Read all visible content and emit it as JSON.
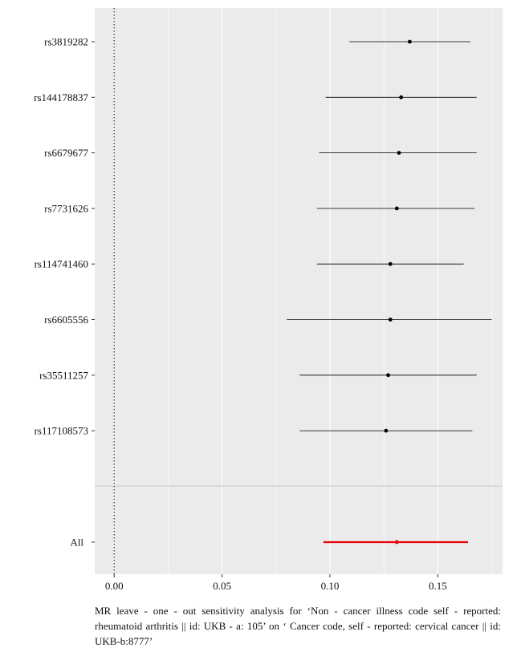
{
  "chart_data": {
    "type": "forest",
    "title": "",
    "xlabel": "",
    "ylabel": "",
    "xlim": [
      -0.009,
      0.18
    ],
    "xticks": [
      "0.00",
      "0.05",
      "0.10",
      "0.15"
    ],
    "xtick_values": [
      0.0,
      0.05,
      0.1,
      0.15
    ],
    "reference_line": 0,
    "grid": true,
    "snps": [
      {
        "label": "rs3819282",
        "estimate": 0.137,
        "lower": 0.109,
        "upper": 0.165
      },
      {
        "label": "rs144178837",
        "estimate": 0.133,
        "lower": 0.098,
        "upper": 0.168
      },
      {
        "label": "rs6679677",
        "estimate": 0.132,
        "lower": 0.095,
        "upper": 0.168
      },
      {
        "label": "rs7731626",
        "estimate": 0.131,
        "lower": 0.094,
        "upper": 0.167
      },
      {
        "label": "rs114741460",
        "estimate": 0.128,
        "lower": 0.094,
        "upper": 0.162
      },
      {
        "label": "rs6605556",
        "estimate": 0.128,
        "lower": 0.08,
        "upper": 0.175
      },
      {
        "label": "rs35511257",
        "estimate": 0.127,
        "lower": 0.086,
        "upper": 0.168
      },
      {
        "label": "rs117108573",
        "estimate": 0.126,
        "lower": 0.086,
        "upper": 0.166
      }
    ],
    "overall": {
      "label": "All",
      "estimate": 0.131,
      "lower": 0.097,
      "upper": 0.164
    },
    "colors": {
      "panel": "#ebebeb",
      "grid": "#ffffff",
      "snp": "#000000",
      "overall": "#e8000b",
      "separator": "#cfcfcf"
    }
  },
  "caption": "MR leave - one - out sensitivity analysis for ‘Non - cancer illness code self - reported: rheumatoid arthritis || id: UKB - a: 105’ on ‘ Cancer code, self - reported: cervical cancer || id: UKB-b:8777’"
}
